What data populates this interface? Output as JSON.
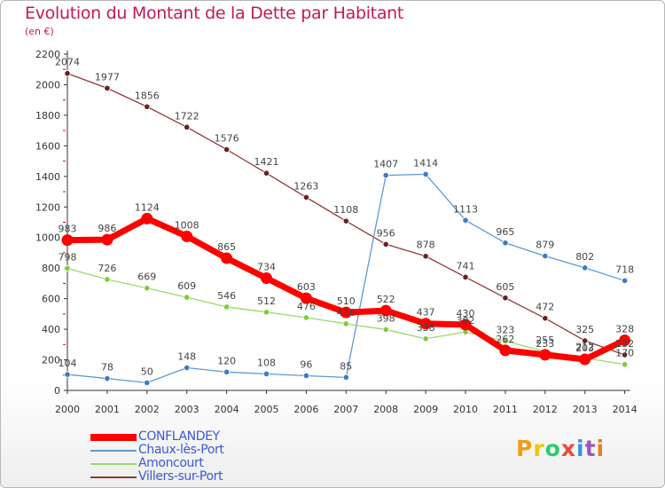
{
  "title": "Evolution du Montant de la Dette par Habitant",
  "subtitle": "(en €)",
  "logo_text": "Proxiti",
  "chart_data": {
    "type": "line",
    "title": "Evolution du Montant de la Dette par Habitant",
    "subtitle": "(en €)",
    "xlabel": "",
    "ylabel": "",
    "categories": [
      "2000",
      "2001",
      "2002",
      "2003",
      "2004",
      "2005",
      "2006",
      "2007",
      "2008",
      "2009",
      "2010",
      "2011",
      "2012",
      "2013",
      "2014"
    ],
    "ylim": [
      0,
      2200
    ],
    "yticks": [
      0,
      200,
      400,
      600,
      800,
      1000,
      1200,
      1400,
      1600,
      1800,
      2000,
      2200
    ],
    "grid": false,
    "legend_position": "bottom-left",
    "series": [
      {
        "name": "CONFLANDEY",
        "color": "#ff0000",
        "marker_color": "#ff0000",
        "values": [
          983,
          986,
          1124,
          1008,
          865,
          734,
          603,
          510,
          522,
          437,
          430,
          262,
          233,
          203,
          328
        ],
        "labels": [
          "983",
          "986",
          "1124",
          "1008",
          "865",
          "734",
          "603",
          "510",
          "522",
          "437",
          "430",
          "262",
          "233",
          "203",
          "328"
        ]
      },
      {
        "name": "Chaux-lès-Port",
        "color": "#5c9bd1",
        "marker_color": "#3a7cc4",
        "values": [
          104,
          78,
          50,
          148,
          120,
          108,
          96,
          85,
          1407,
          1414,
          1113,
          965,
          879,
          802,
          718
        ],
        "labels": [
          "104",
          "78",
          "50",
          "148",
          "120",
          "108",
          "96",
          "85",
          "1407",
          "1414",
          "1113",
          "965",
          "879",
          "802",
          "718"
        ]
      },
      {
        "name": "Amoncourt",
        "color": "#9bd86b",
        "marker_color": "#7ccc3a",
        "values": [
          798,
          726,
          669,
          609,
          546,
          512,
          476,
          436,
          398,
          338,
          382,
          323,
          255,
          212,
          170
        ],
        "labels": [
          "798",
          "726",
          "669",
          "609",
          "546",
          "512",
          "476",
          "436",
          "398",
          "338",
          "382",
          "323",
          "255",
          "212",
          "170"
        ]
      },
      {
        "name": "Villers-sur-Port",
        "color": "#8b3a3a",
        "marker_color": "#6b1f1f",
        "values": [
          2074,
          1977,
          1856,
          1722,
          1576,
          1421,
          1263,
          1108,
          956,
          878,
          741,
          605,
          472,
          325,
          232
        ],
        "labels": [
          "2074",
          "1977",
          "1856",
          "1722",
          "1576",
          "1421",
          "1263",
          "1108",
          "956",
          "878",
          "741",
          "605",
          "472",
          "325",
          "232"
        ]
      }
    ]
  }
}
